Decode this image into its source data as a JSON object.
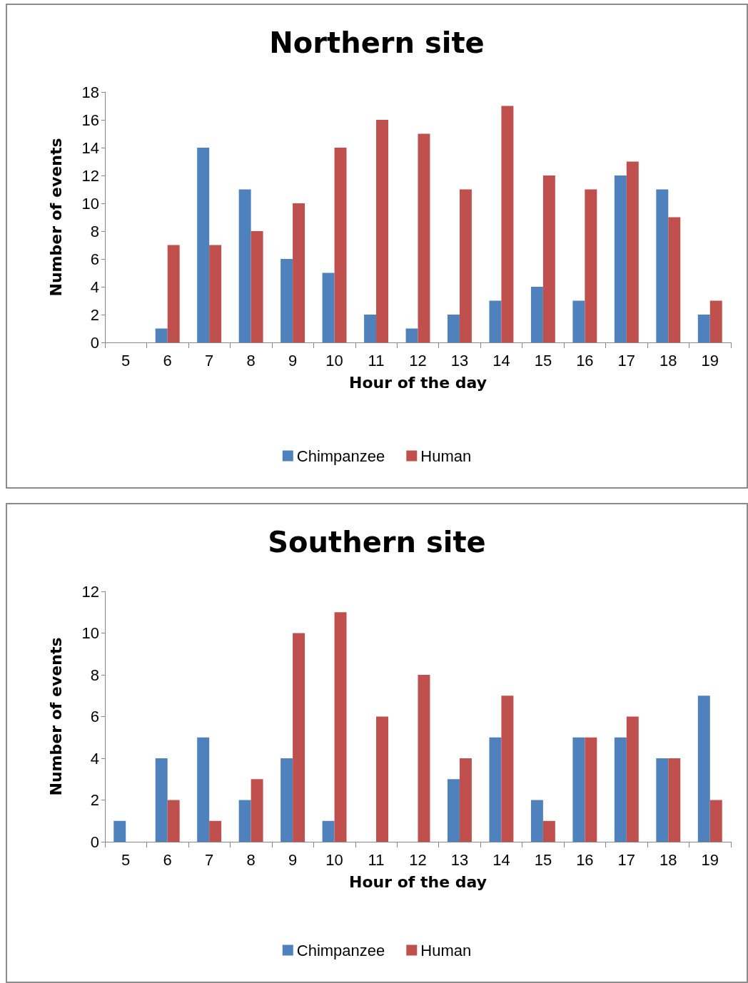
{
  "chart_data": [
    {
      "type": "bar",
      "title": "Northern site",
      "xlabel": "Hour of the day",
      "ylabel": "Number of events",
      "categories": [
        "5",
        "6",
        "7",
        "8",
        "9",
        "10",
        "11",
        "12",
        "13",
        "14",
        "15",
        "16",
        "17",
        "18",
        "19"
      ],
      "series": [
        {
          "name": "Chimpanzee",
          "color": "#4f81bd",
          "values": [
            0,
            1,
            14,
            11,
            6,
            5,
            2,
            1,
            2,
            3,
            4,
            3,
            12,
            11,
            2
          ]
        },
        {
          "name": "Human",
          "color": "#c0504d",
          "values": [
            0,
            7,
            7,
            8,
            10,
            14,
            16,
            15,
            11,
            17,
            12,
            11,
            13,
            9,
            3
          ]
        }
      ],
      "ylim": [
        0,
        18
      ],
      "yticks": [
        0,
        2,
        4,
        6,
        8,
        10,
        12,
        14,
        16,
        18
      ],
      "grid": false,
      "legend": "bottom"
    },
    {
      "type": "bar",
      "title": "Southern site",
      "xlabel": "Hour of the day",
      "ylabel": "Number of events",
      "categories": [
        "5",
        "6",
        "7",
        "8",
        "9",
        "10",
        "11",
        "12",
        "13",
        "14",
        "15",
        "16",
        "17",
        "18",
        "19"
      ],
      "series": [
        {
          "name": "Chimpanzee",
          "color": "#4f81bd",
          "values": [
            1,
            4,
            5,
            2,
            4,
            1,
            0,
            0,
            3,
            5,
            2,
            5,
            5,
            4,
            7
          ]
        },
        {
          "name": "Human",
          "color": "#c0504d",
          "values": [
            0,
            2,
            1,
            3,
            10,
            11,
            6,
            8,
            4,
            7,
            1,
            5,
            6,
            4,
            2
          ]
        }
      ],
      "ylim": [
        0,
        12
      ],
      "yticks": [
        0,
        2,
        4,
        6,
        8,
        10,
        12
      ],
      "grid": false,
      "legend": "bottom"
    }
  ]
}
